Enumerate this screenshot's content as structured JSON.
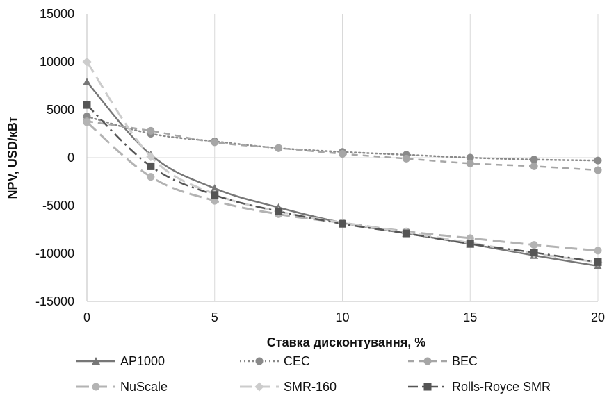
{
  "chart_data": {
    "type": "line",
    "xlabel": "Ставка дисконтування, %",
    "ylabel": "NPV, USD/кВт",
    "xlim": [
      0,
      20
    ],
    "ylim": [
      -15000,
      15000
    ],
    "x_ticks": [
      0,
      5,
      10,
      15,
      20
    ],
    "y_ticks": [
      -15000,
      -10000,
      -5000,
      0,
      5000,
      10000,
      15000
    ],
    "y_tick_labels": [
      "-15000",
      "-10000",
      "-5000",
      "0",
      "5000",
      "10000",
      "15000"
    ],
    "grid": "vertical",
    "legend_position": "bottom",
    "x": [
      0,
      2.5,
      5,
      7.5,
      10,
      12.5,
      15,
      17.5,
      20
    ],
    "series": [
      {
        "name": "AP1000",
        "color": "#777777",
        "dash": "solid",
        "marker": "triangle",
        "values": [
          7900,
          300,
          -3200,
          -5200,
          -6800,
          -7900,
          -9000,
          -10200,
          -11300
        ]
      },
      {
        "name": "CEC",
        "color": "#8a8a8a",
        "dash": "dotted",
        "marker": "circle",
        "values": [
          4300,
          2500,
          1700,
          1000,
          600,
          300,
          0,
          -200,
          -300
        ]
      },
      {
        "name": "BEC",
        "color": "#a6a6a6",
        "dash": "dashed",
        "marker": "circle",
        "values": [
          3800,
          2800,
          1600,
          1000,
          400,
          -100,
          -600,
          -900,
          -1300
        ]
      },
      {
        "name": "NuScale",
        "color": "#b3b3b3",
        "dash": "longdash",
        "marker": "circle",
        "values": [
          3700,
          -2000,
          -4500,
          -5900,
          -6800,
          -7700,
          -8400,
          -9100,
          -9700
        ]
      },
      {
        "name": "SMR-160",
        "color": "#cccccc",
        "dash": "longdash",
        "marker": "diamond",
        "values": [
          10000,
          100,
          -3800,
          -5600,
          -6800,
          -7800,
          -8900,
          -10000,
          -10900
        ]
      },
      {
        "name": "Rolls-Royce SMR",
        "color": "#555555",
        "dash": "dashdot",
        "marker": "square",
        "values": [
          5500,
          -900,
          -3900,
          -5600,
          -6900,
          -7900,
          -9000,
          -9900,
          -10900
        ]
      }
    ]
  }
}
